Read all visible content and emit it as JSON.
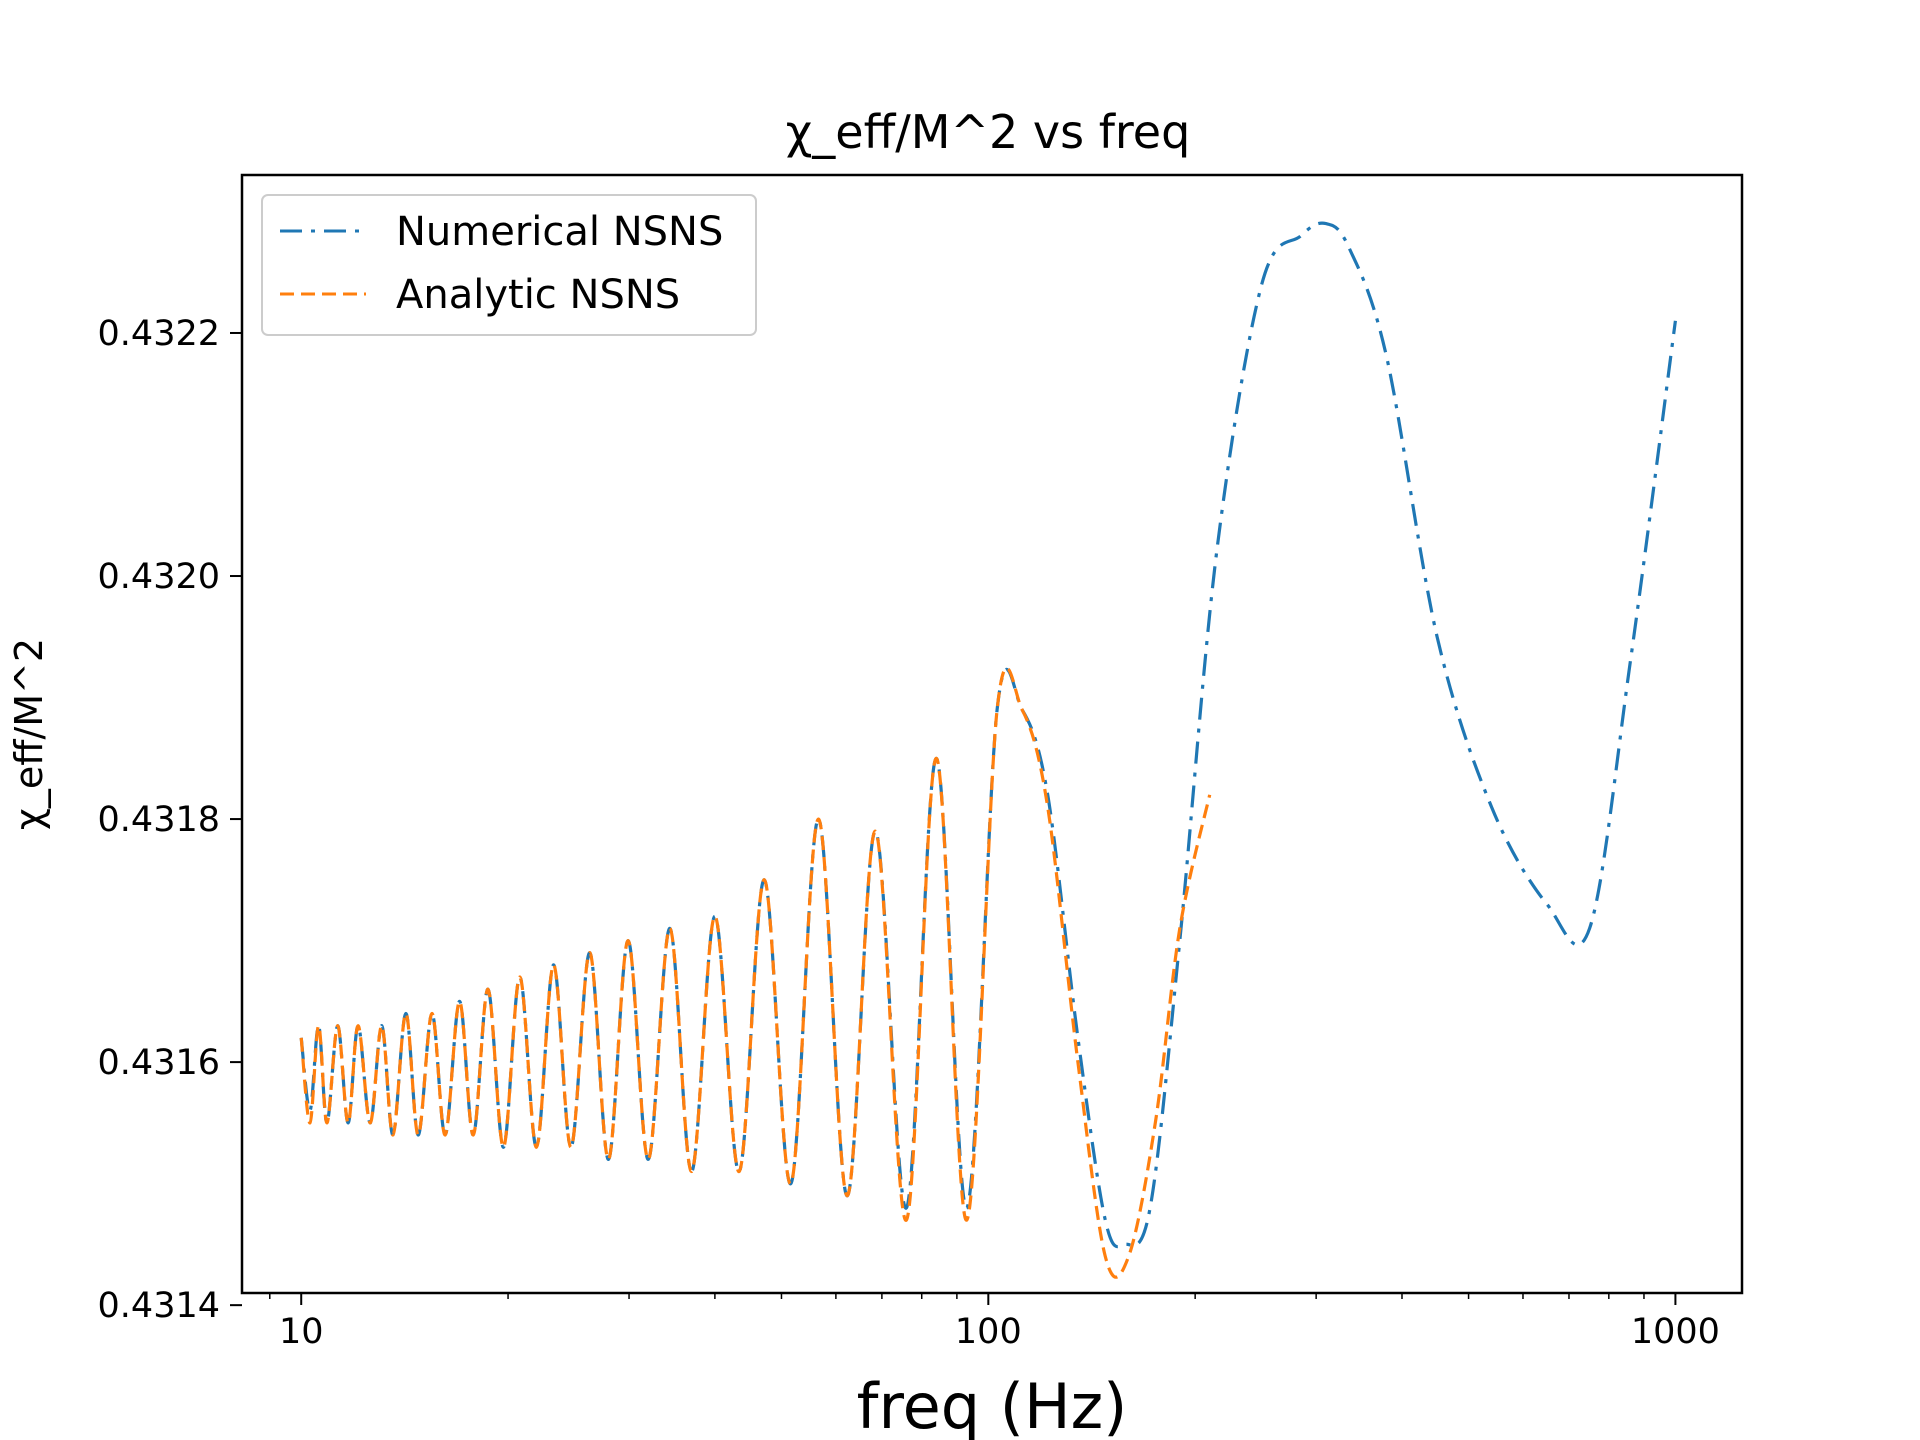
{
  "chart_data": {
    "type": "line",
    "title": "χ_eff/M^2 vs freq",
    "xlabel": "freq (Hz)",
    "ylabel": "χ_eff/M^2",
    "xscale": "log",
    "xlim": [
      8.2,
      1250
    ],
    "ylim": [
      0.43141,
      0.43233
    ],
    "x_ticks": [
      {
        "value": 10,
        "label": "10"
      },
      {
        "value": 100,
        "label": "100"
      },
      {
        "value": 1000,
        "label": "1000"
      }
    ],
    "y_ticks": [
      {
        "value": 0.4314,
        "label": "0.4314"
      },
      {
        "value": 0.4316,
        "label": "0.4316"
      },
      {
        "value": 0.4318,
        "label": "0.4318"
      },
      {
        "value": 0.432,
        "label": "0.4320"
      },
      {
        "value": 0.4322,
        "label": "0.4322"
      }
    ],
    "legend_location": "upper-left",
    "series": [
      {
        "name": "Numerical NSNS",
        "color": "#1f77b4",
        "style": "dashdot",
        "x": [
          10,
          10.3,
          10.6,
          10.9,
          11.3,
          11.7,
          12.1,
          12.6,
          13.1,
          13.6,
          14.2,
          14.8,
          15.5,
          16.2,
          17.0,
          17.8,
          18.7,
          19.7,
          20.8,
          22.0,
          23.3,
          24.7,
          26.3,
          28.0,
          29.9,
          32.0,
          34.4,
          37.0,
          40.0,
          43.4,
          47.2,
          51.6,
          56.6,
          62.3,
          68.5,
          76.0,
          84.0,
          93.0,
          103.0,
          112.0,
          122.0,
          135.0,
          148.0,
          158.0,
          172.0,
          190.0,
          215.0,
          250.0,
          285.0,
          310.0,
          335.0,
          380.0,
          450.0,
          540.0,
          650.0,
          750.0,
          860.0,
          1000.0
        ],
        "y": [
          0.43162,
          0.43156,
          0.43163,
          0.43155,
          0.43163,
          0.43155,
          0.43163,
          0.43155,
          0.43163,
          0.43154,
          0.43164,
          0.43154,
          0.43164,
          0.43154,
          0.43165,
          0.43154,
          0.43166,
          0.43153,
          0.43167,
          0.43153,
          0.43168,
          0.43153,
          0.43169,
          0.43152,
          0.4317,
          0.43152,
          0.43171,
          0.43151,
          0.43172,
          0.43151,
          0.43175,
          0.4315,
          0.4318,
          0.43149,
          0.43179,
          0.43148,
          0.43185,
          0.43148,
          0.43189,
          0.43189,
          0.43182,
          0.43162,
          0.43147,
          0.43145,
          0.43148,
          0.4317,
          0.43202,
          0.43224,
          0.43228,
          0.43229,
          0.43227,
          0.43218,
          0.43195,
          0.43181,
          0.43173,
          0.43171,
          0.43193,
          0.43221
        ]
      },
      {
        "name": "Analytic NSNS",
        "color": "#ff7f0e",
        "style": "dashed",
        "x": [
          10,
          10.3,
          10.6,
          10.9,
          11.3,
          11.7,
          12.1,
          12.6,
          13.1,
          13.6,
          14.2,
          14.8,
          15.5,
          16.2,
          17.0,
          17.8,
          18.7,
          19.7,
          20.8,
          22.0,
          23.3,
          24.7,
          26.3,
          28.0,
          29.9,
          32.0,
          34.4,
          37.0,
          40.0,
          43.4,
          47.2,
          51.6,
          56.6,
          62.3,
          68.5,
          76.0,
          84.0,
          93.0,
          103.0,
          112.0,
          122.0,
          135.0,
          148.0,
          160.0,
          175.0,
          190.0,
          210.0
        ],
        "y": [
          0.43162,
          0.43155,
          0.43163,
          0.43155,
          0.43163,
          0.43155,
          0.43163,
          0.43155,
          0.43163,
          0.43154,
          0.43164,
          0.43154,
          0.43164,
          0.43154,
          0.43165,
          0.43154,
          0.43166,
          0.43153,
          0.43167,
          0.43153,
          0.43168,
          0.43153,
          0.43169,
          0.43152,
          0.4317,
          0.43152,
          0.43171,
          0.43151,
          0.43172,
          0.43151,
          0.43175,
          0.4315,
          0.4318,
          0.43149,
          0.43179,
          0.43147,
          0.43185,
          0.43147,
          0.43189,
          0.43189,
          0.43181,
          0.4316,
          0.43144,
          0.43144,
          0.43155,
          0.43171,
          0.43182
        ]
      }
    ]
  }
}
